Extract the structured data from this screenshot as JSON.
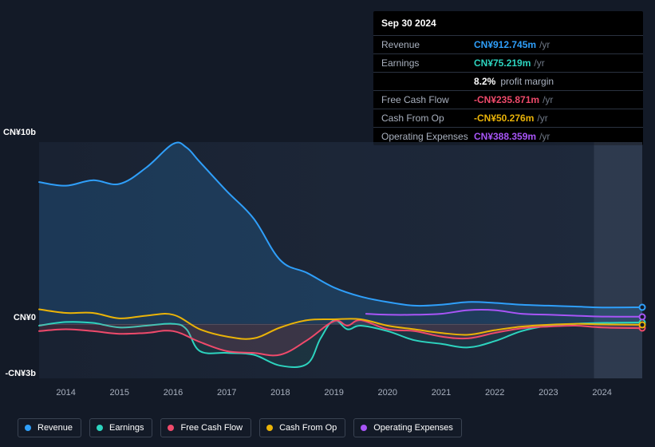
{
  "tooltip": {
    "title": "Sep 30 2024",
    "rows": [
      {
        "label": "Revenue",
        "value": "CN¥912.745m",
        "unit": "/yr",
        "color": "#2f9ffa"
      },
      {
        "label": "Earnings",
        "value": "CN¥75.219m",
        "unit": "/yr",
        "color": "#2dd4bf"
      },
      {
        "label": "",
        "pct": "8.2%",
        "pct_label": "profit margin",
        "is_margin": true
      },
      {
        "label": "Free Cash Flow",
        "value": "-CN¥235.871m",
        "unit": "/yr",
        "color": "#ef4a6b"
      },
      {
        "label": "Cash From Op",
        "value": "-CN¥50.276m",
        "unit": "/yr",
        "color": "#eab308"
      },
      {
        "label": "Operating Expenses",
        "value": "CN¥388.359m",
        "unit": "/yr",
        "color": "#a855f7"
      }
    ]
  },
  "chart": {
    "y_axis": {
      "max_label": "CN¥10b",
      "zero_label": "CN¥0",
      "min_label": "-CN¥3b",
      "max_value": 10.0,
      "zero_value": 0.0,
      "min_value": -3.0
    },
    "x_axis": {
      "start_year": 2013.5,
      "end_year": 2024.75,
      "labels": [
        2014,
        2015,
        2016,
        2017,
        2018,
        2019,
        2020,
        2021,
        2022,
        2023,
        2024
      ]
    },
    "series": [
      {
        "name": "Revenue",
        "color": "#2f9ffa",
        "fill": "rgba(47,159,250,0.18)",
        "baseline": "zero",
        "points": [
          [
            2013.5,
            7.8
          ],
          [
            2014.0,
            7.6
          ],
          [
            2014.5,
            7.9
          ],
          [
            2015.0,
            7.7
          ],
          [
            2015.5,
            8.6
          ],
          [
            2016.0,
            9.9
          ],
          [
            2016.25,
            9.7
          ],
          [
            2016.5,
            8.9
          ],
          [
            2017.0,
            7.3
          ],
          [
            2017.5,
            5.8
          ],
          [
            2018.0,
            3.5
          ],
          [
            2018.5,
            2.8
          ],
          [
            2019.0,
            2.0
          ],
          [
            2019.5,
            1.5
          ],
          [
            2020.0,
            1.2
          ],
          [
            2020.5,
            1.0
          ],
          [
            2021.0,
            1.05
          ],
          [
            2021.5,
            1.2
          ],
          [
            2022.0,
            1.15
          ],
          [
            2022.5,
            1.05
          ],
          [
            2023.0,
            1.0
          ],
          [
            2023.5,
            0.95
          ],
          [
            2024.0,
            0.9
          ],
          [
            2024.75,
            0.91
          ]
        ]
      },
      {
        "name": "Earnings",
        "color": "#2dd4bf",
        "fill": "rgba(45,212,191,0.08)",
        "baseline": "zero",
        "points": [
          [
            2013.5,
            -0.1
          ],
          [
            2014.0,
            0.1
          ],
          [
            2014.5,
            0.05
          ],
          [
            2015.0,
            -0.2
          ],
          [
            2015.5,
            -0.1
          ],
          [
            2016.0,
            0.0
          ],
          [
            2016.25,
            -0.3
          ],
          [
            2016.5,
            -1.5
          ],
          [
            2017.0,
            -1.6
          ],
          [
            2017.5,
            -1.7
          ],
          [
            2018.0,
            -2.3
          ],
          [
            2018.5,
            -2.2
          ],
          [
            2018.75,
            -0.8
          ],
          [
            2019.0,
            0.2
          ],
          [
            2019.25,
            -0.3
          ],
          [
            2019.5,
            -0.1
          ],
          [
            2020.0,
            -0.4
          ],
          [
            2020.5,
            -0.9
          ],
          [
            2021.0,
            -1.1
          ],
          [
            2021.5,
            -1.3
          ],
          [
            2022.0,
            -0.95
          ],
          [
            2022.5,
            -0.4
          ],
          [
            2023.0,
            -0.1
          ],
          [
            2023.5,
            0.0
          ],
          [
            2024.0,
            0.05
          ],
          [
            2024.75,
            0.075
          ]
        ]
      },
      {
        "name": "Free Cash Flow",
        "color": "#ef4a6b",
        "fill": "rgba(239,74,107,0.14)",
        "baseline": "zero",
        "points": [
          [
            2013.5,
            -0.4
          ],
          [
            2014.0,
            -0.3
          ],
          [
            2014.5,
            -0.4
          ],
          [
            2015.0,
            -0.55
          ],
          [
            2015.5,
            -0.5
          ],
          [
            2016.0,
            -0.4
          ],
          [
            2016.5,
            -1.0
          ],
          [
            2017.0,
            -1.5
          ],
          [
            2017.5,
            -1.6
          ],
          [
            2018.0,
            -1.7
          ],
          [
            2018.5,
            -0.9
          ],
          [
            2019.0,
            0.15
          ],
          [
            2019.25,
            -0.1
          ],
          [
            2019.5,
            0.2
          ],
          [
            2020.0,
            -0.3
          ],
          [
            2020.5,
            -0.4
          ],
          [
            2021.0,
            -0.7
          ],
          [
            2021.5,
            -0.8
          ],
          [
            2022.0,
            -0.5
          ],
          [
            2022.5,
            -0.25
          ],
          [
            2023.0,
            -0.15
          ],
          [
            2023.5,
            -0.1
          ],
          [
            2024.0,
            -0.2
          ],
          [
            2024.75,
            -0.24
          ]
        ]
      },
      {
        "name": "Cash From Op",
        "color": "#eab308",
        "fill": "none",
        "baseline": "none",
        "points": [
          [
            2013.5,
            0.8
          ],
          [
            2014.0,
            0.6
          ],
          [
            2014.5,
            0.6
          ],
          [
            2015.0,
            0.3
          ],
          [
            2015.5,
            0.45
          ],
          [
            2016.0,
            0.5
          ],
          [
            2016.5,
            -0.3
          ],
          [
            2017.0,
            -0.7
          ],
          [
            2017.5,
            -0.8
          ],
          [
            2018.0,
            -0.2
          ],
          [
            2018.5,
            0.2
          ],
          [
            2019.0,
            0.25
          ],
          [
            2019.5,
            0.25
          ],
          [
            2020.0,
            -0.1
          ],
          [
            2020.5,
            -0.3
          ],
          [
            2021.0,
            -0.5
          ],
          [
            2021.5,
            -0.6
          ],
          [
            2022.0,
            -0.35
          ],
          [
            2022.5,
            -0.15
          ],
          [
            2023.0,
            -0.05
          ],
          [
            2023.5,
            0.0
          ],
          [
            2024.0,
            -0.03
          ],
          [
            2024.75,
            -0.05
          ]
        ]
      },
      {
        "name": "Operating Expenses",
        "color": "#a855f7",
        "fill": "none",
        "baseline": "none",
        "points": [
          [
            2019.6,
            0.55
          ],
          [
            2020.0,
            0.5
          ],
          [
            2020.5,
            0.5
          ],
          [
            2021.0,
            0.55
          ],
          [
            2021.5,
            0.75
          ],
          [
            2022.0,
            0.75
          ],
          [
            2022.5,
            0.55
          ],
          [
            2023.0,
            0.5
          ],
          [
            2023.5,
            0.45
          ],
          [
            2024.0,
            0.4
          ],
          [
            2024.75,
            0.39
          ]
        ]
      }
    ],
    "end_markers_x": 2024.75
  },
  "legend": [
    {
      "label": "Revenue",
      "color": "#2f9ffa"
    },
    {
      "label": "Earnings",
      "color": "#2dd4bf"
    },
    {
      "label": "Free Cash Flow",
      "color": "#ef4a6b"
    },
    {
      "label": "Cash From Op",
      "color": "#eab308"
    },
    {
      "label": "Operating Expenses",
      "color": "#a855f7"
    }
  ]
}
